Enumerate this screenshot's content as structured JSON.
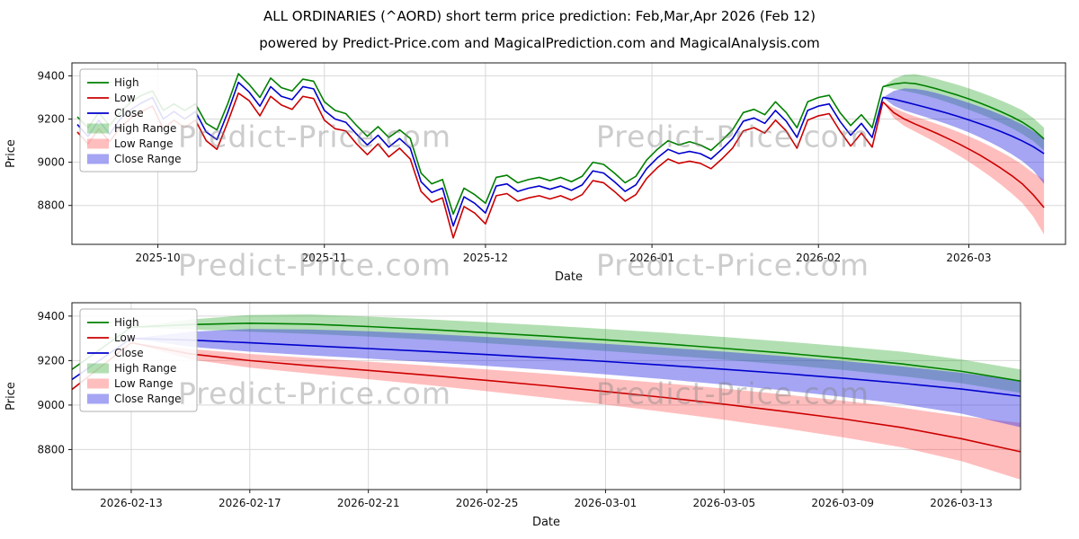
{
  "title": "ALL ORDINARIES (^AORD) short term price prediction: Feb,Mar,Apr 2026 (Feb 12)",
  "subtitle": "powered by Predict-Price.com and MagicalPrediction.com and MagicalAnalysis.com",
  "watermark": "Predict-Price.com",
  "colors": {
    "high": "#008000",
    "low": "#cc0000",
    "close": "#0000cd",
    "high_range_fill": "rgba(0,150,0,0.30)",
    "low_range_fill": "rgba(255,40,40,0.30)",
    "close_range_fill": "rgba(55,55,230,0.45)",
    "grid": "#d8d8d8",
    "spine": "#1a1a1a"
  },
  "legend": [
    {
      "label": "High",
      "kind": "line",
      "color": "high"
    },
    {
      "label": "Low",
      "kind": "line",
      "color": "low"
    },
    {
      "label": "Close",
      "kind": "line",
      "color": "close"
    },
    {
      "label": "High Range",
      "kind": "band",
      "color": "high_range_fill"
    },
    {
      "label": "Low Range",
      "kind": "band",
      "color": "low_range_fill"
    },
    {
      "label": "Close Range",
      "kind": "band",
      "color": "close_range_fill"
    }
  ],
  "chart_data": {
    "type": "line",
    "title": "ALL ORDINARIES (^AORD) short term price prediction: Feb,Mar,Apr 2026 (Feb 12)",
    "xlabel": "Date",
    "ylabel": "Price",
    "ylim": [
      8620,
      9460
    ],
    "yticks": [
      8800,
      9000,
      9200,
      9400
    ],
    "grid": true,
    "legend_position": "upper-left",
    "history": {
      "start_date": "2025-09-16",
      "step_days": 2,
      "high": [
        9210,
        9160,
        9230,
        9170,
        9230,
        9280,
        9310,
        9330,
        9240,
        9270,
        9240,
        9270,
        9180,
        9150,
        9270,
        9410,
        9360,
        9300,
        9390,
        9345,
        9330,
        9385,
        9375,
        9280,
        9240,
        9225,
        9170,
        9120,
        9165,
        9115,
        9150,
        9110,
        8950,
        8900,
        8920,
        8760,
        8880,
        8850,
        8810,
        8930,
        8940,
        8905,
        8920,
        8930,
        8915,
        8930,
        8910,
        8935,
        9000,
        8990,
        8950,
        8905,
        8935,
        9010,
        9060,
        9100,
        9080,
        9095,
        9080,
        9055,
        9100,
        9150,
        9230,
        9245,
        9220,
        9280,
        9230,
        9160,
        9280,
        9300,
        9310,
        9230,
        9170,
        9220,
        9160,
        9350
      ],
      "low": [
        9140,
        9085,
        9155,
        9095,
        9160,
        9205,
        9235,
        9260,
        9155,
        9195,
        9160,
        9195,
        9100,
        9060,
        9185,
        9320,
        9285,
        9215,
        9305,
        9265,
        9245,
        9305,
        9295,
        9195,
        9155,
        9145,
        9085,
        9035,
        9085,
        9025,
        9065,
        9015,
        8865,
        8815,
        8835,
        8650,
        8795,
        8765,
        8715,
        8845,
        8855,
        8820,
        8835,
        8845,
        8830,
        8845,
        8825,
        8850,
        8915,
        8905,
        8865,
        8820,
        8850,
        8925,
        8975,
        9015,
        8995,
        9005,
        8995,
        8970,
        9015,
        9065,
        9145,
        9160,
        9135,
        9195,
        9145,
        9065,
        9195,
        9215,
        9225,
        9145,
        9075,
        9135,
        9070,
        9280
      ],
      "close": [
        9175,
        9120,
        9195,
        9130,
        9200,
        9245,
        9275,
        9300,
        9200,
        9235,
        9200,
        9235,
        9140,
        9105,
        9230,
        9370,
        9325,
        9260,
        9350,
        9305,
        9290,
        9350,
        9340,
        9240,
        9200,
        9185,
        9130,
        9080,
        9125,
        9070,
        9110,
        9065,
        8910,
        8860,
        8880,
        8705,
        8840,
        8810,
        8765,
        8890,
        8900,
        8865,
        8880,
        8890,
        8875,
        8890,
        8870,
        8895,
        8960,
        8950,
        8910,
        8865,
        8895,
        8970,
        9020,
        9060,
        9040,
        9050,
        9040,
        9015,
        9060,
        9110,
        9190,
        9205,
        9180,
        9240,
        9190,
        9115,
        9240,
        9260,
        9270,
        9190,
        9125,
        9180,
        9115,
        9300
      ]
    },
    "prediction": {
      "start_date": "2026-02-13",
      "step_days": 2,
      "high_top": [
        9350,
        9385,
        9405,
        9408,
        9398,
        9386,
        9372,
        9358,
        9342,
        9325,
        9306,
        9286,
        9264,
        9240,
        9205,
        9160
      ],
      "high_mid": [
        9350,
        9362,
        9368,
        9364,
        9353,
        9340,
        9325,
        9310,
        9293,
        9275,
        9255,
        9234,
        9211,
        9185,
        9152,
        9108
      ],
      "high_bot": [
        9350,
        9340,
        9330,
        9320,
        9308,
        9294,
        9278,
        9261,
        9243,
        9224,
        9204,
        9182,
        9158,
        9130,
        9098,
        9055
      ],
      "close_top": [
        9300,
        9330,
        9342,
        9340,
        9332,
        9320,
        9306,
        9291,
        9275,
        9258,
        9240,
        9220,
        9198,
        9174,
        9145,
        9110
      ],
      "close_mid": [
        9300,
        9292,
        9280,
        9267,
        9254,
        9241,
        9227,
        9212,
        9196,
        9179,
        9161,
        9142,
        9121,
        9098,
        9072,
        9040
      ],
      "close_bot": [
        9300,
        9262,
        9240,
        9224,
        9209,
        9193,
        9176,
        9158,
        9138,
        9116,
        9092,
        9066,
        9037,
        9004,
        8962,
        8900
      ],
      "low_top": [
        9280,
        9252,
        9230,
        9212,
        9195,
        9178,
        9160,
        9141,
        9120,
        9098,
        9074,
        9048,
        9020,
        8988,
        8950,
        8920
      ],
      "low_mid": [
        9280,
        9230,
        9200,
        9177,
        9156,
        9134,
        9111,
        9087,
        9061,
        9034,
        9004,
        8972,
        8938,
        8899,
        8849,
        8790
      ],
      "low_bot": [
        9280,
        9205,
        9168,
        9142,
        9116,
        9090,
        9062,
        9033,
        9002,
        8969,
        8934,
        8896,
        8855,
        8810,
        8748,
        8665
      ]
    },
    "charts": [
      {
        "id": "chart-top",
        "xlim": [
          "2025-09-15",
          "2026-03-19"
        ],
        "xticks": [
          {
            "date": "2025-10-01",
            "label": "2025-10"
          },
          {
            "date": "2025-11-01",
            "label": "2025-11"
          },
          {
            "date": "2025-12-01",
            "label": "2025-12"
          },
          {
            "date": "2026-01-01",
            "label": "2026-01"
          },
          {
            "date": "2026-02-01",
            "label": "2026-02"
          },
          {
            "date": "2026-03-01",
            "label": "2026-03"
          }
        ]
      },
      {
        "id": "chart-bottom",
        "xlim": [
          "2026-02-11",
          "2026-03-15"
        ],
        "xticks": [
          {
            "date": "2026-02-13",
            "label": "2026-02-13"
          },
          {
            "date": "2026-02-17",
            "label": "2026-02-17"
          },
          {
            "date": "2026-02-21",
            "label": "2026-02-21"
          },
          {
            "date": "2026-02-25",
            "label": "2026-02-25"
          },
          {
            "date": "2026-03-01",
            "label": "2026-03-01"
          },
          {
            "date": "2026-03-05",
            "label": "2026-03-05"
          },
          {
            "date": "2026-03-09",
            "label": "2026-03-09"
          },
          {
            "date": "2026-03-13",
            "label": "2026-03-13"
          }
        ]
      }
    ]
  }
}
